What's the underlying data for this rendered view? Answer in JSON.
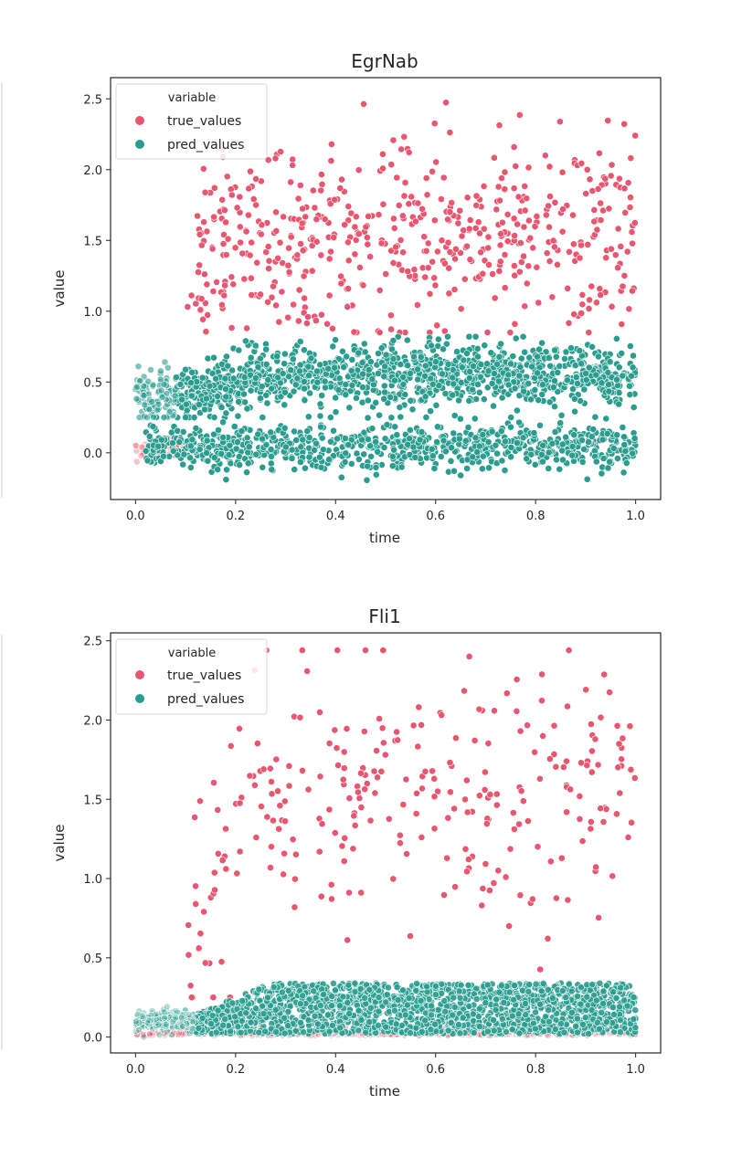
{
  "chart_data": [
    {
      "type": "scatter",
      "title": "EgrNab",
      "xlabel": "time",
      "ylabel": "value",
      "xlim": [
        -0.05,
        1.05
      ],
      "ylim": [
        -0.33,
        2.65
      ],
      "xticks": [
        "0.0",
        "0.2",
        "0.4",
        "0.6",
        "0.8",
        "1.0"
      ],
      "yticks": [
        "0.0",
        "0.5",
        "1.0",
        "1.5",
        "2.0",
        "2.5"
      ],
      "grid": false,
      "legend": {
        "title": "variable",
        "placement": "top-left",
        "entries": [
          "true_values",
          "pred_values"
        ]
      },
      "series": [
        {
          "name": "true_values",
          "color": "#e8566f",
          "description_of_distribution": "sparse near 0 before time 0.12; from 0.12 onward spread between 0.85 and 2.5, centred around 1.5",
          "samples": [
            [
              0.12,
              1.7
            ],
            [
              0.15,
              1.6
            ],
            [
              0.2,
              2.1
            ],
            [
              0.25,
              1.45
            ],
            [
              0.36,
              2.52
            ],
            [
              0.4,
              1.55
            ],
            [
              0.5,
              2.3
            ],
            [
              0.6,
              1.5
            ],
            [
              0.7,
              2.45
            ],
            [
              0.78,
              2.47
            ],
            [
              0.85,
              1.6
            ],
            [
              0.97,
              2.38
            ],
            [
              1.0,
              1.2
            ]
          ]
        },
        {
          "name": "pred_values",
          "color": "#2a9d8f",
          "description_of_distribution": "two bands: upper band rising from 0.35 to about 0.55 (spread 0.3-0.8), lower band near 0.05 (spread -0.2 to 0.25)",
          "samples": [
            [
              0.0,
              0.35
            ],
            [
              0.05,
              0.6
            ],
            [
              0.1,
              0.8
            ],
            [
              0.2,
              0.55
            ],
            [
              0.4,
              0.6
            ],
            [
              0.6,
              0.55
            ],
            [
              0.8,
              0.6
            ],
            [
              1.0,
              0.6
            ],
            [
              0.2,
              0.05
            ],
            [
              0.5,
              0.0
            ],
            [
              0.8,
              0.05
            ],
            [
              1.0,
              0.1
            ]
          ]
        }
      ]
    },
    {
      "type": "scatter",
      "title": "Fli1",
      "xlabel": "time",
      "ylabel": "value",
      "xlim": [
        -0.05,
        1.05
      ],
      "ylim": [
        -0.1,
        2.55
      ],
      "xticks": [
        "0.0",
        "0.2",
        "0.4",
        "0.6",
        "0.8",
        "1.0"
      ],
      "yticks": [
        "0.0",
        "0.5",
        "1.0",
        "1.5",
        "2.0",
        "2.5"
      ],
      "grid": false,
      "legend": {
        "title": "variable",
        "placement": "top-left",
        "entries": [
          "true_values",
          "pred_values"
        ]
      },
      "series": [
        {
          "name": "true_values",
          "color": "#e8566f",
          "description_of_distribution": "dense near 0 throughout; sparse points rising from 0.1 and spread between 0.3 and 2.45 after time 0.15",
          "samples": [
            [
              0.1,
              0.25
            ],
            [
              0.15,
              0.8
            ],
            [
              0.2,
              1.5
            ],
            [
              0.25,
              2.0
            ],
            [
              0.31,
              2.28
            ],
            [
              0.4,
              1.9
            ],
            [
              0.5,
              2.1
            ],
            [
              0.66,
              2.27
            ],
            [
              0.75,
              2.44
            ],
            [
              0.85,
              1.8
            ],
            [
              0.95,
              2.27
            ],
            [
              1.0,
              1.4
            ]
          ]
        },
        {
          "name": "pred_values",
          "color": "#2a9d8f",
          "description_of_distribution": "band near 0.1 early, widening to 0.0-0.35 after time 0.15",
          "samples": [
            [
              0.0,
              0.1
            ],
            [
              0.1,
              0.12
            ],
            [
              0.2,
              0.2
            ],
            [
              0.4,
              0.25
            ],
            [
              0.6,
              0.28
            ],
            [
              0.8,
              0.3
            ],
            [
              1.0,
              0.33
            ],
            [
              0.5,
              0.05
            ],
            [
              0.9,
              0.08
            ]
          ]
        }
      ]
    }
  ]
}
